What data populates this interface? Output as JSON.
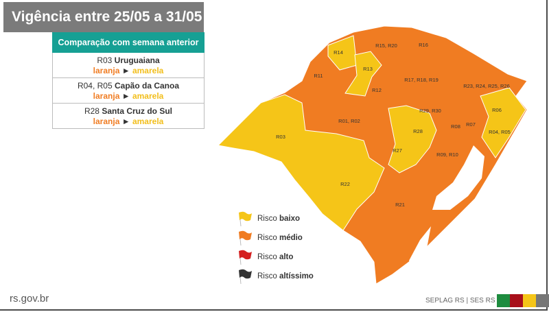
{
  "title": "Vigência entre 25/05 a 31/05",
  "comparison": {
    "header": "Comparação com semana anterior",
    "rows": [
      {
        "code": "R03",
        "name": "Uruguaiana",
        "from": "laranja",
        "to": "amarela"
      },
      {
        "code": "R04, R05",
        "name": "Capão da Canoa",
        "from": "laranja",
        "to": "amarela"
      },
      {
        "code": "R28",
        "name": "Santa Cruz do Sul",
        "from": "laranja",
        "to": "amarela"
      }
    ]
  },
  "arrow": "►",
  "map": {
    "regions": [
      {
        "label": "R14",
        "risk": "baixo"
      },
      {
        "label": "R15, R20",
        "risk": "médio"
      },
      {
        "label": "R16",
        "risk": "médio"
      },
      {
        "label": "R11",
        "risk": "médio"
      },
      {
        "label": "R13",
        "risk": "baixo"
      },
      {
        "label": "R12",
        "risk": "médio"
      },
      {
        "label": "R17, R18, R19",
        "risk": "médio"
      },
      {
        "label": "R23, R24, R25, R26",
        "risk": "médio"
      },
      {
        "label": "R06",
        "risk": "baixo"
      },
      {
        "label": "R29, R30",
        "risk": "médio"
      },
      {
        "label": "R01, R02",
        "risk": "médio"
      },
      {
        "label": "R28",
        "risk": "baixo"
      },
      {
        "label": "R08",
        "risk": "médio"
      },
      {
        "label": "R07",
        "risk": "médio"
      },
      {
        "label": "R04, R05",
        "risk": "baixo"
      },
      {
        "label": "R03",
        "risk": "baixo"
      },
      {
        "label": "R27",
        "risk": "baixo"
      },
      {
        "label": "R09, R10",
        "risk": "médio"
      },
      {
        "label": "R22",
        "risk": "baixo"
      },
      {
        "label": "R21",
        "risk": "médio"
      }
    ]
  },
  "legend": [
    {
      "prefix": "Risco",
      "level": "baixo",
      "color": "#f5c518"
    },
    {
      "prefix": "Risco",
      "level": "médio",
      "color": "#f07c22"
    },
    {
      "prefix": "Risco",
      "level": "alto",
      "color": "#d42020"
    },
    {
      "prefix": "Risco",
      "level": "altíssimo",
      "color": "#333333"
    }
  ],
  "footer": {
    "site": "rs.gov.br",
    "credits": "SEPLAG RS | SES RS",
    "flag_colors": [
      "#1e8c3f",
      "#a8101a",
      "#f5c518",
      "#777777"
    ]
  },
  "colors": {
    "orange": "#f07c22",
    "yellow": "#f5c518",
    "teal": "#16a094"
  }
}
